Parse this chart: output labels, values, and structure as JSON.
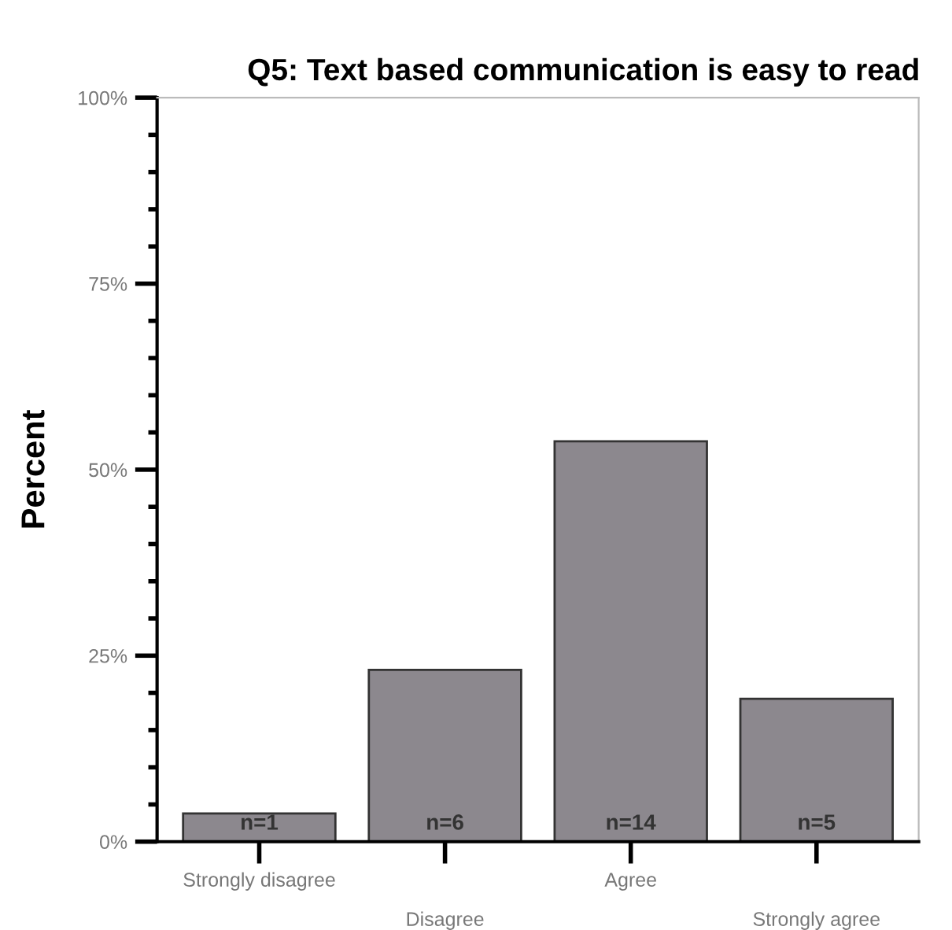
{
  "chart_data": {
    "type": "bar",
    "title": "Q5: Text based communication is easy to read",
    "ylabel": "Percent",
    "categories": [
      "Strongly disagree",
      "Disagree",
      "Agree",
      "Strongly agree"
    ],
    "values": [
      3.8,
      23.1,
      53.8,
      19.2
    ],
    "annotations": [
      {
        "text": "n=1",
        "x": "Strongly disagree",
        "y": 1
      },
      {
        "text": "n=6",
        "x": "Disagree",
        "y": 1
      },
      {
        "text": "n=14",
        "x": "Agree",
        "y": 1
      },
      {
        "text": "n=5",
        "x": "Strongly agree",
        "y": 1
      }
    ],
    "color": "#8c888e",
    "ylim": [
      0,
      100
    ],
    "yticks": [
      {
        "value": 0,
        "label": "0%"
      },
      {
        "value": 25,
        "label": "25%"
      },
      {
        "value": 50,
        "label": "50%"
      },
      {
        "value": 75,
        "label": "75%"
      },
      {
        "value": 100,
        "label": "100%"
      }
    ],
    "grid": false
  }
}
